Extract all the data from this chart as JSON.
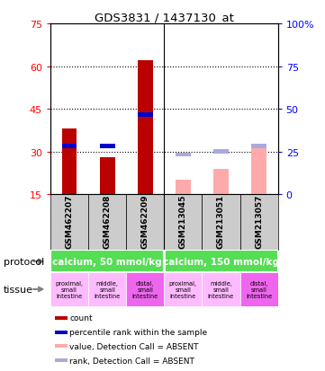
{
  "title": "GDS3831 / 1437130_at",
  "samples": [
    "GSM462207",
    "GSM462208",
    "GSM462209",
    "GSM213045",
    "GSM213051",
    "GSM213057"
  ],
  "count_values": [
    38,
    28,
    62,
    null,
    null,
    null
  ],
  "rank_values": [
    32,
    32,
    43,
    null,
    null,
    null
  ],
  "absent_count_values": [
    null,
    null,
    null,
    20,
    24,
    32
  ],
  "absent_rank_values": [
    null,
    null,
    null,
    29,
    30,
    32
  ],
  "ylim_left": [
    15,
    75
  ],
  "ylim_right": [
    0,
    100
  ],
  "yticks_left": [
    15,
    30,
    45,
    60,
    75
  ],
  "yticks_right": [
    0,
    25,
    50,
    75,
    100
  ],
  "ytick_labels_right": [
    "0",
    "25",
    "50",
    "75",
    "100%"
  ],
  "color_count": "#bb0000",
  "color_rank": "#0000cc",
  "color_absent_count": "#ffaaaa",
  "color_absent_rank": "#aaaadd",
  "protocol_labels": [
    "calcium, 50 mmol/kg",
    "calcium, 150 mmol/kg"
  ],
  "protocol_color": "#55dd55",
  "tissue_labels": [
    "proximal,\nsmall\nintestine",
    "middle,\nsmall\nintestine",
    "distal,\nsmall\nintestine",
    "proximal,\nsmall\nintestine",
    "middle,\nsmall\nintestine",
    "distal,\nsmall\nintestine"
  ],
  "tissue_colors": [
    "#ffbbff",
    "#ffbbff",
    "#ee66ee",
    "#ffbbff",
    "#ffbbff",
    "#ee66ee"
  ],
  "legend_items": [
    {
      "label": "count",
      "color": "#bb0000"
    },
    {
      "label": "percentile rank within the sample",
      "color": "#0000cc"
    },
    {
      "label": "value, Detection Call = ABSENT",
      "color": "#ffaaaa"
    },
    {
      "label": "rank, Detection Call = ABSENT",
      "color": "#aaaadd"
    }
  ],
  "sample_area_color": "#cccccc",
  "bar_width": 0.4
}
